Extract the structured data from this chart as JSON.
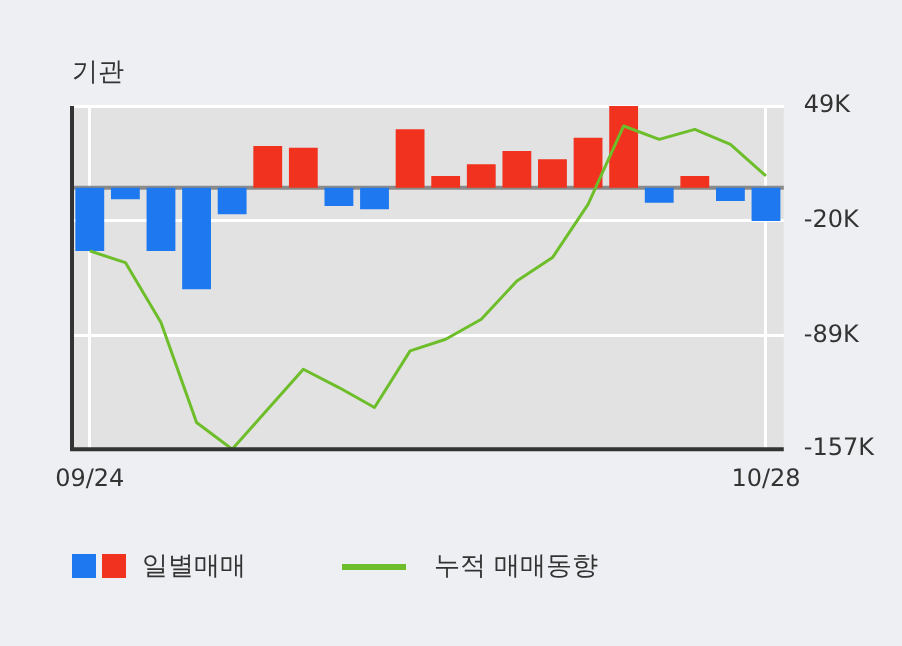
{
  "chart_data": {
    "type": "bar",
    "title": "기관",
    "categories": [
      "09/24",
      null,
      null,
      null,
      null,
      null,
      null,
      null,
      null,
      null,
      null,
      null,
      null,
      null,
      null,
      null,
      null,
      null,
      null,
      "10/28"
    ],
    "series": [
      {
        "name": "일별매매",
        "colors": [
          "#1e78f0",
          "#1e78f0",
          "#1e78f0",
          "#1e78f0",
          "#1e78f0",
          "#f0321e",
          "#f0321e",
          "#1e78f0",
          "#1e78f0",
          "#f0321e",
          "#f0321e",
          "#f0321e",
          "#f0321e",
          "#f0321e",
          "#f0321e",
          "#f0321e",
          "#1e78f0",
          "#f0321e",
          "#1e78f0",
          "#1e78f0"
        ],
        "values": [
          -38000,
          -7000,
          -38000,
          -61000,
          -16000,
          25000,
          24000,
          -11000,
          -13000,
          35000,
          7000,
          14000,
          22000,
          17000,
          30000,
          49000,
          -9000,
          7000,
          -8000,
          -20000
        ]
      },
      {
        "type": "line",
        "name": "누적 매매동향",
        "color": "#6dbe2a",
        "values": [
          -38000,
          -45000,
          -81000,
          -141000,
          -157000,
          -133000,
          -109000,
          -120000,
          -132000,
          -98000,
          -91000,
          -79000,
          -56000,
          -42000,
          -10000,
          37000,
          29000,
          35000,
          26000,
          7000
        ]
      }
    ],
    "ylim": [
      -157000,
      49000
    ],
    "yticks": [
      {
        "value": -157000,
        "label": "-157K"
      },
      {
        "value": -89000,
        "label": "-89K"
      },
      {
        "value": -20000,
        "label": "-20K"
      },
      {
        "value": 49000,
        "label": "49K"
      }
    ],
    "grid": true,
    "legend": "bottom",
    "marker": "none"
  }
}
